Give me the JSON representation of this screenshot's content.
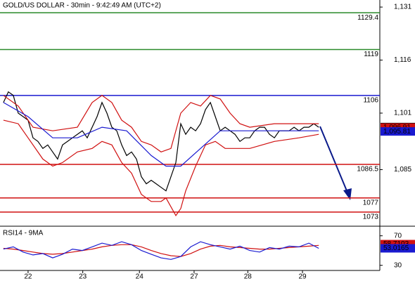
{
  "chart_data": [
    {
      "type": "line",
      "title": "GOLD/US DOLLAR - 30min - 9:42:49 AM (UTC+2)",
      "xlim": [
        -0.7,
        76.4
      ],
      "ylim": [
        1069,
        1133
      ],
      "yticks": [
        {
          "value": 1131,
          "label": "1,131"
        },
        {
          "value": 1116,
          "label": "1,116"
        },
        {
          "value": 1101,
          "label": "1,101"
        },
        {
          "value": 1085,
          "label": "1,085"
        }
      ],
      "levels": [
        {
          "value": 1129.4,
          "color": "#2a8a2a"
        },
        {
          "value": 1119,
          "color": "#2a8a2a"
        },
        {
          "value": 1106,
          "color": "#1a1ad0"
        },
        {
          "value": 1086.5,
          "color": "#d01010"
        },
        {
          "value": 1077,
          "color": "#d01010"
        },
        {
          "value": 1073,
          "color": "#d01010"
        }
      ],
      "price_tags": [
        {
          "value": 1097.05,
          "label": "1,097.05",
          "color": "#000000"
        },
        {
          "value": 1096.91,
          "label": "1,096.91",
          "color": "#d01010"
        },
        {
          "value": 1095.81,
          "label": "1,095.81",
          "color": "#1a1ad0"
        }
      ],
      "series": [
        {
          "color": "#000000",
          "x": [
            0,
            1,
            2,
            3,
            4,
            5,
            6,
            7,
            8,
            9,
            10,
            11,
            12,
            13,
            14,
            15,
            16,
            17,
            18,
            19,
            20,
            21,
            22,
            23,
            24,
            25,
            26,
            27,
            28,
            29,
            30,
            31,
            32,
            33,
            34,
            35,
            36,
            37,
            38,
            39,
            40,
            41,
            42,
            43,
            44,
            45,
            46,
            47,
            48,
            49,
            50,
            51,
            52,
            53,
            54,
            55,
            56,
            57,
            58,
            59,
            60,
            61,
            62,
            63,
            64
          ],
          "values": [
            1104,
            1107,
            1106,
            1101,
            1100,
            1099,
            1094,
            1093,
            1091,
            1092,
            1090,
            1088,
            1092,
            1093,
            1094,
            1095,
            1096,
            1094,
            1097,
            1100,
            1104,
            1101,
            1097,
            1096,
            1092,
            1089,
            1090,
            1088,
            1083,
            1081,
            1082,
            1081,
            1080,
            1079,
            1083,
            1087,
            1098,
            1095,
            1097,
            1096,
            1098,
            1102,
            1104,
            1100,
            1096,
            1097,
            1096,
            1095,
            1093,
            1094,
            1094,
            1096,
            1097,
            1097,
            1095,
            1094,
            1096,
            1096,
            1096,
            1097,
            1096,
            1097,
            1097,
            1098,
            1097
          ]
        },
        {
          "color": "#d01010",
          "x": [
            0,
            3,
            6,
            10,
            15,
            18,
            20,
            22,
            24,
            26,
            28,
            30,
            32,
            34,
            36,
            38,
            40,
            42,
            44,
            46,
            48,
            50,
            55,
            60,
            64
          ],
          "values": [
            1106,
            1103,
            1097,
            1096,
            1097,
            1104,
            1106,
            1104,
            1099,
            1097,
            1093,
            1092,
            1090,
            1091,
            1101,
            1104,
            1103,
            1106,
            1105,
            1101,
            1098,
            1097,
            1098,
            1098,
            1098
          ]
        },
        {
          "color": "#d01010",
          "x": [
            0,
            3,
            5,
            8,
            10,
            12,
            15,
            18,
            20,
            22,
            24,
            26,
            28,
            30,
            32,
            33,
            35,
            36,
            37,
            39,
            41,
            43,
            45,
            47,
            50,
            55,
            60,
            64
          ],
          "values": [
            1099,
            1098,
            1094,
            1088,
            1086,
            1087,
            1090,
            1091,
            1093,
            1092,
            1087,
            1084,
            1078,
            1076,
            1076,
            1077,
            1072,
            1074,
            1079,
            1086,
            1092,
            1093,
            1091,
            1091,
            1091,
            1093,
            1094,
            1095
          ]
        },
        {
          "color": "#1a1ad0",
          "x": [
            0,
            5,
            10,
            15,
            20,
            25,
            30,
            33,
            36,
            40,
            44,
            48,
            52,
            56,
            60,
            64
          ],
          "values": [
            1104,
            1100,
            1094,
            1094,
            1097,
            1096,
            1089,
            1086,
            1086,
            1091,
            1096,
            1096,
            1096,
            1096,
            1096,
            1096
          ]
        }
      ]
    },
    {
      "type": "line",
      "title": "RSI14 - 9MA",
      "xlim": [
        -0.7,
        76.4
      ],
      "ylim": [
        23,
        83
      ],
      "yticks": [
        70,
        30
      ],
      "xticks": [
        {
          "value": 5,
          "label": "22"
        },
        {
          "value": 16.1,
          "label": "23"
        },
        {
          "value": 27.6,
          "label": "24"
        },
        {
          "value": 38.7,
          "label": "27"
        },
        {
          "value": 49.6,
          "label": "28"
        },
        {
          "value": 60.7,
          "label": "29"
        }
      ],
      "price_tags": [
        {
          "value": 58.7103,
          "label": "58.7103",
          "color": "#d01010"
        },
        {
          "value": 53.0165,
          "label": "53.0165",
          "color": "#1a1ad0"
        }
      ],
      "series": [
        {
          "color": "#d01010",
          "x": [
            0,
            2,
            4,
            6,
            8,
            10,
            12,
            14,
            16,
            18,
            20,
            22,
            24,
            26,
            28,
            30,
            32,
            34,
            36,
            38,
            40,
            42,
            44,
            46,
            48,
            50,
            52,
            54,
            56,
            58,
            60,
            62,
            64
          ],
          "values": [
            53,
            52,
            50,
            48,
            46,
            45,
            46,
            48,
            50,
            52,
            55,
            57,
            58,
            58,
            55,
            50,
            46,
            43,
            42,
            46,
            52,
            56,
            57,
            55,
            54,
            53,
            52,
            52,
            53,
            54,
            55,
            56,
            57
          ]
        },
        {
          "color": "#1a1ad0",
          "x": [
            0,
            2,
            4,
            6,
            8,
            10,
            12,
            14,
            16,
            18,
            20,
            22,
            24,
            26,
            28,
            30,
            32,
            34,
            36,
            38,
            40,
            42,
            44,
            46,
            48,
            50,
            52,
            54,
            56,
            58,
            60,
            62,
            64
          ],
          "values": [
            52,
            55,
            48,
            44,
            46,
            40,
            45,
            52,
            50,
            55,
            60,
            57,
            62,
            58,
            50,
            45,
            40,
            38,
            42,
            55,
            62,
            58,
            55,
            52,
            56,
            50,
            48,
            54,
            52,
            56,
            55,
            60,
            53
          ]
        }
      ]
    }
  ]
}
